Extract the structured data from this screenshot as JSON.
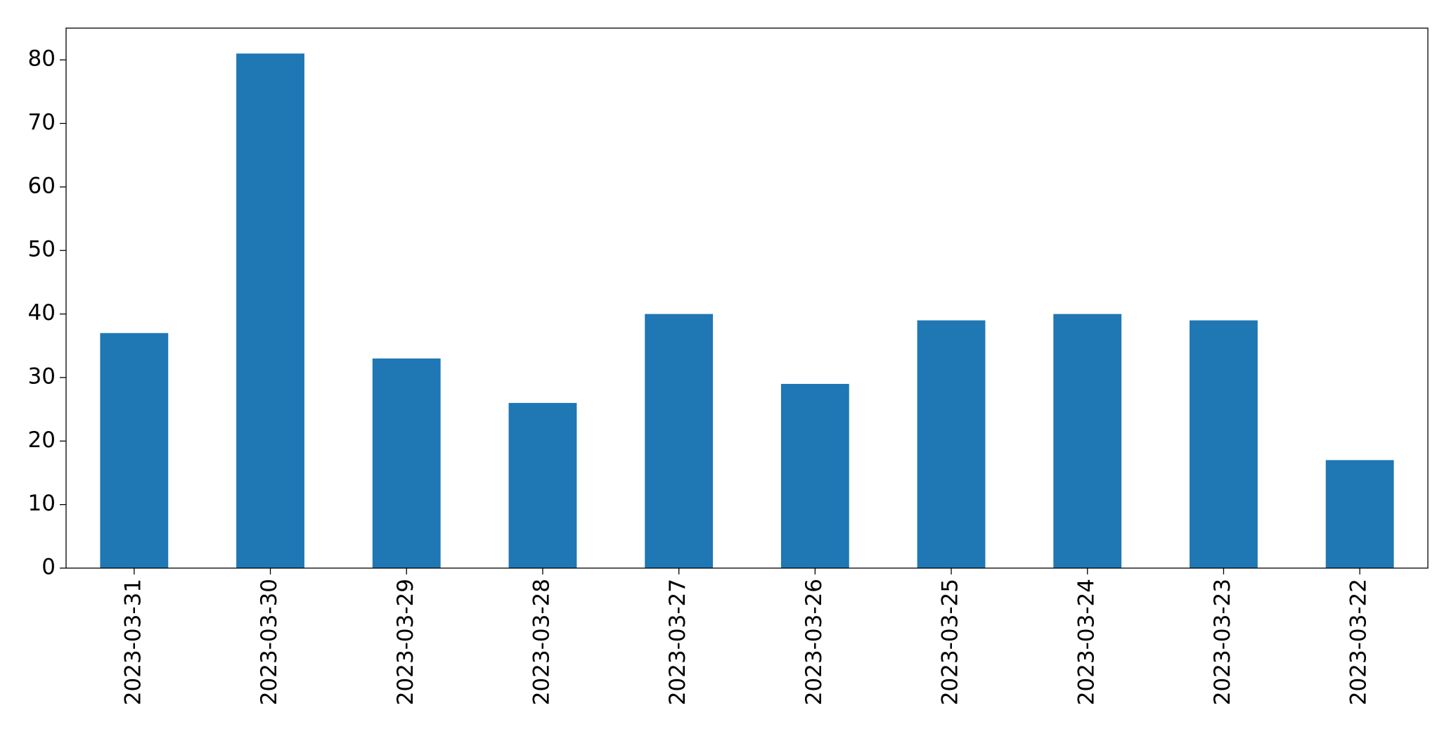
{
  "chart_data": {
    "type": "bar",
    "categories": [
      "2023-03-31",
      "2023-03-30",
      "2023-03-29",
      "2023-03-28",
      "2023-03-27",
      "2023-03-26",
      "2023-03-25",
      "2023-03-24",
      "2023-03-23",
      "2023-03-22"
    ],
    "values": [
      37,
      81,
      33,
      26,
      40,
      29,
      39,
      40,
      39,
      17
    ],
    "color": "#1f77b4",
    "ylim": [
      0,
      85
    ],
    "yticks": [
      0,
      10,
      20,
      30,
      40,
      50,
      60,
      70,
      80
    ],
    "grid": false
  }
}
